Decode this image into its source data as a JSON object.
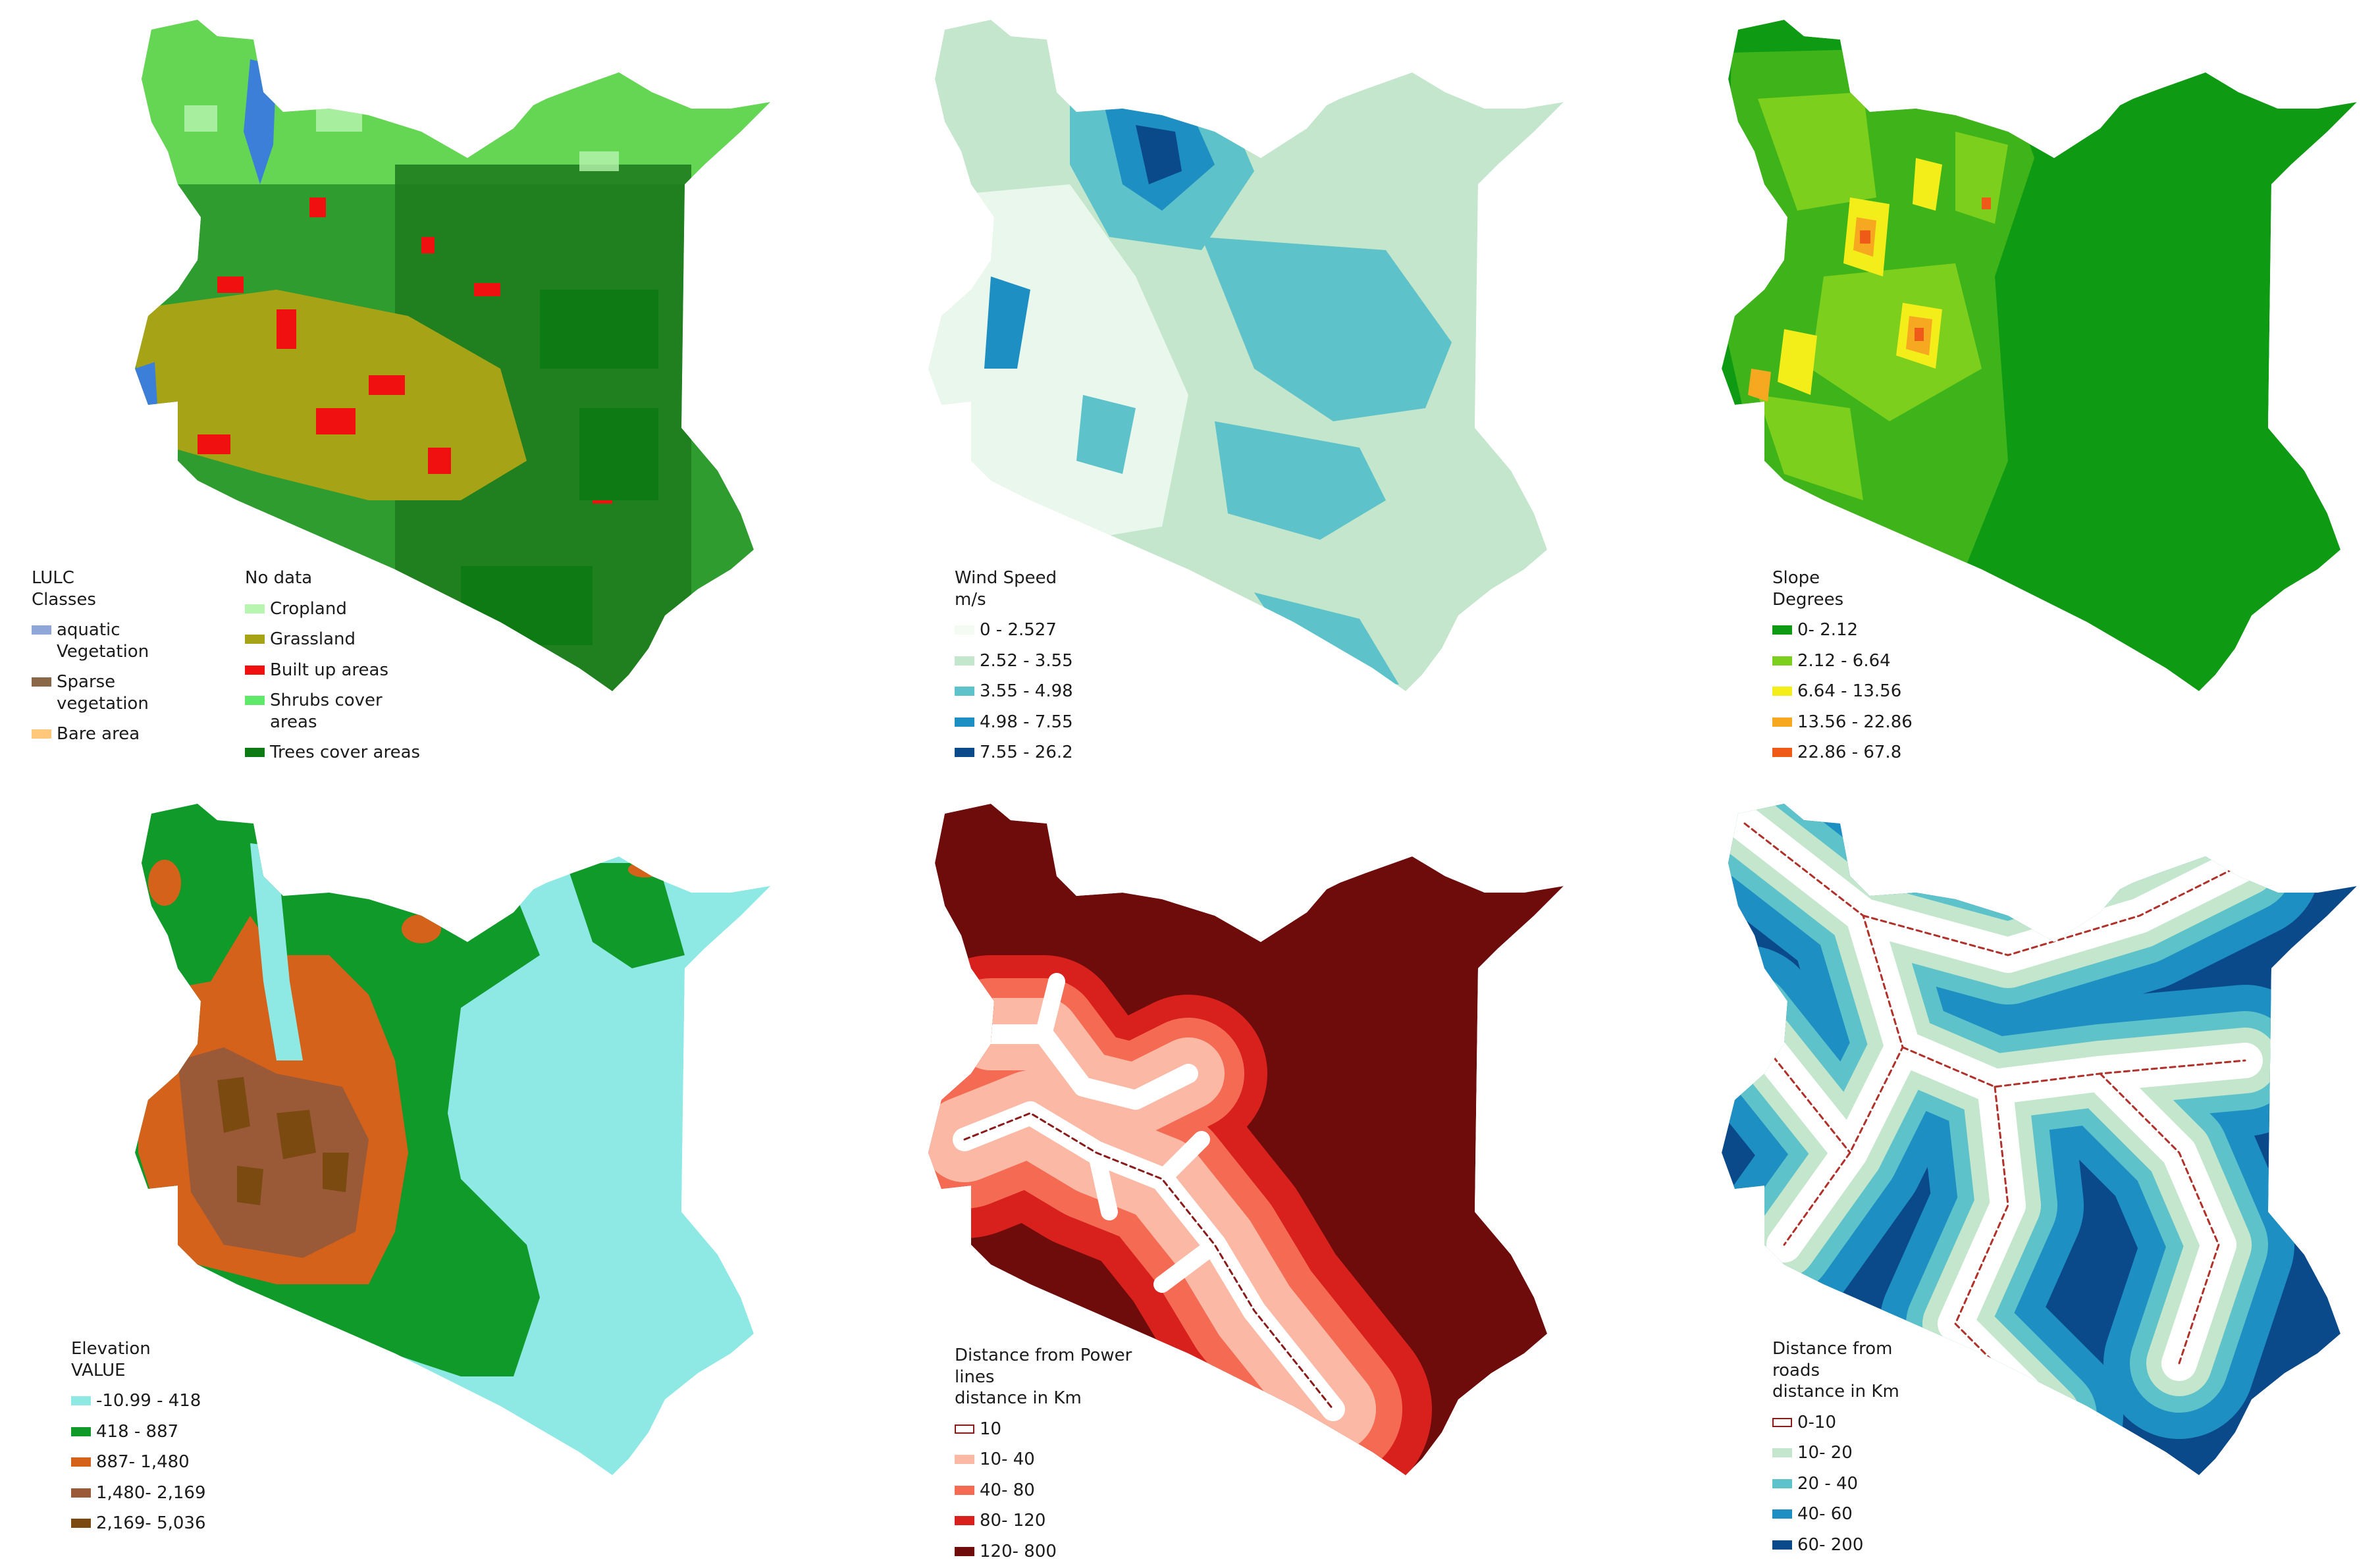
{
  "panels": [
    {
      "id": "lulc",
      "legend": {
        "title": "LULC\nClasses",
        "left_items": [
          {
            "label": "aquatic\nVegetation",
            "color": "#8fa6d8"
          },
          {
            "label": "Sparse\nvegetation",
            "color": "#8a6747"
          },
          {
            "label": "Bare area",
            "color": "#ffc77a"
          }
        ],
        "right_title": "No data",
        "right_items": [
          {
            "label": "Cropland",
            "color": "#b8f5b0"
          },
          {
            "label": "Grassland",
            "color": "#a6a316"
          },
          {
            "label": "Built up areas",
            "color": "#f01010"
          },
          {
            "label": "Shrubs cover\nareas",
            "color": "#5fe86a"
          },
          {
            "label": "Trees cover areas",
            "color": "#0d7a14"
          }
        ]
      }
    },
    {
      "id": "wind",
      "legend": {
        "title": "Wind Speed\nm/s",
        "items": [
          {
            "label": "0 - 2.527",
            "color": "#f4fbf3"
          },
          {
            "label": "2.52 - 3.55",
            "color": "#c3e6cc"
          },
          {
            "label": "3.55 - 4.98",
            "color": "#5dc2c9"
          },
          {
            "label": "4.98 - 7.55",
            "color": "#1d8fc2"
          },
          {
            "label": "7.55 - 26.2",
            "color": "#0a4a8a"
          }
        ]
      }
    },
    {
      "id": "slope",
      "legend": {
        "title": "Slope\nDegrees",
        "items": [
          {
            "label": "0- 2.12",
            "color": "#0f9a14"
          },
          {
            "label": "2.12 - 6.64",
            "color": "#7ccf1c"
          },
          {
            "label": "6.64 - 13.56",
            "color": "#f3ee1a"
          },
          {
            "label": "13.56 - 22.86",
            "color": "#f6a820"
          },
          {
            "label": "22.86 - 67.8",
            "color": "#f05a18"
          }
        ]
      }
    },
    {
      "id": "elevation",
      "legend": {
        "title": "Elevation\nVALUE",
        "items": [
          {
            "label": "-10.99 - 418",
            "color": "#8ee8e4"
          },
          {
            "label": "418 - 887",
            "color": "#0f9a2a"
          },
          {
            "label": "887- 1,480",
            "color": "#d4621a"
          },
          {
            "label": "1,480- 2,169",
            "color": "#9a5a38"
          },
          {
            "label": "2,169- 5,036",
            "color": "#7a4a10"
          }
        ]
      }
    },
    {
      "id": "power",
      "legend": {
        "title": "Distance from Power\nlines\ndistance in Km",
        "items": [
          {
            "label": "10",
            "color": "#ffffff",
            "outline": true
          },
          {
            "label": "10- 40",
            "color": "#fbb8a4"
          },
          {
            "label": "40- 80",
            "color": "#f46a52"
          },
          {
            "label": "80- 120",
            "color": "#d8201c"
          },
          {
            "label": "120- 800",
            "color": "#6e0b0b"
          }
        ]
      }
    },
    {
      "id": "roads",
      "legend": {
        "title": "Distance from\nroads\ndistance in Km",
        "items": [
          {
            "label": "0-10",
            "color": "#ffffff",
            "outline": true
          },
          {
            "label": "10- 20",
            "color": "#c3e6cc"
          },
          {
            "label": "20 - 40",
            "color": "#5dc2c9"
          },
          {
            "label": "40- 60",
            "color": "#1d8fc2"
          },
          {
            "label": "60- 200",
            "color": "#0a4a8a"
          }
        ]
      }
    }
  ]
}
